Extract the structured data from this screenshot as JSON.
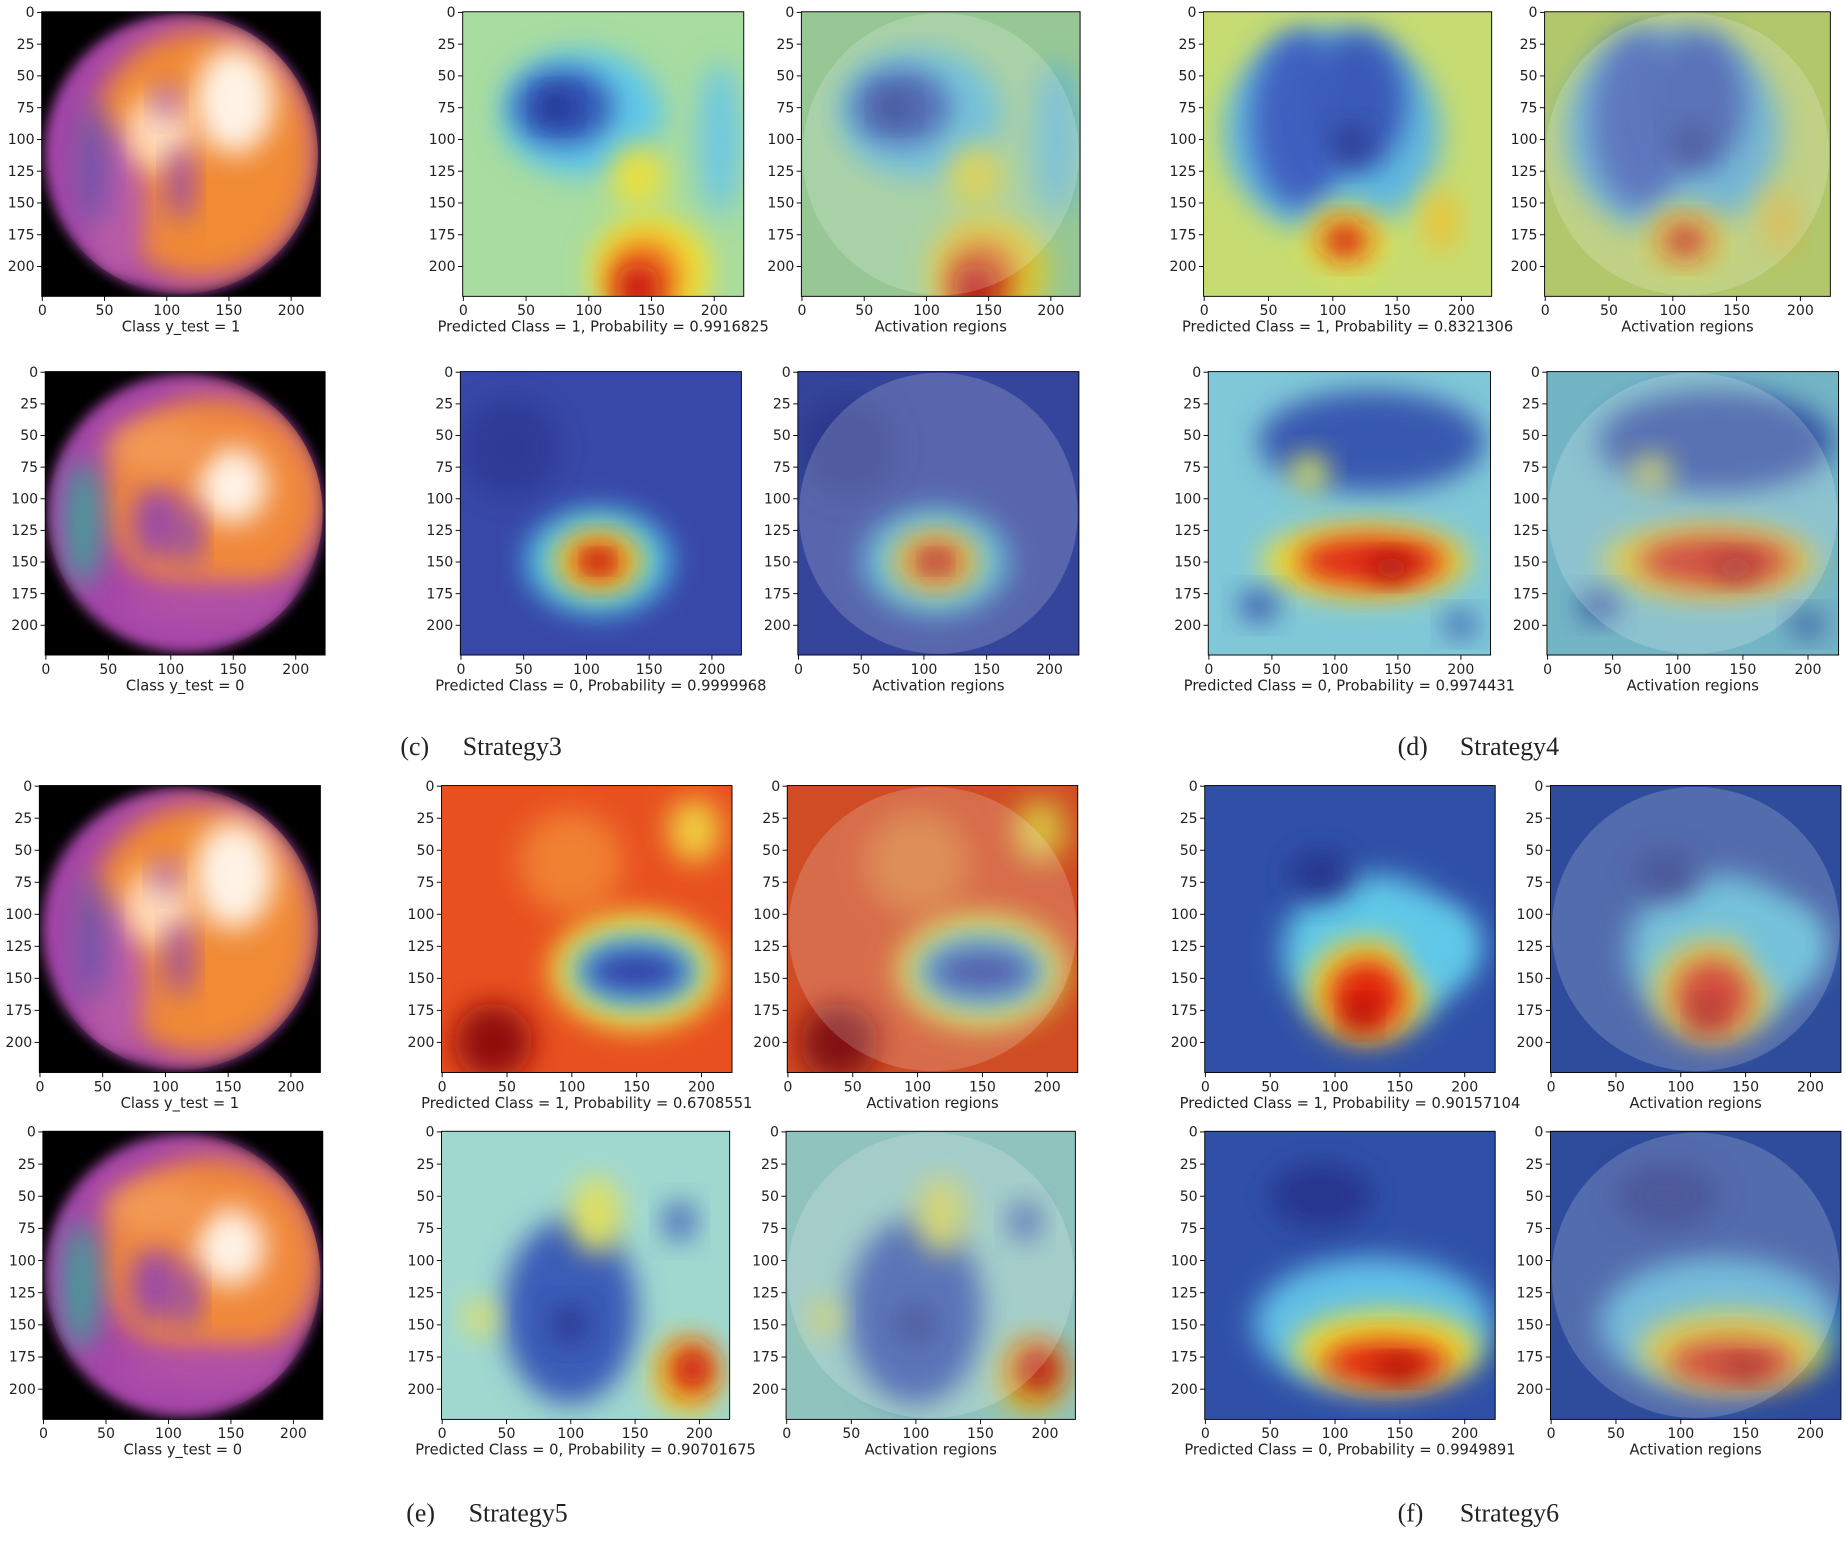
{
  "axes": {
    "yticks": [
      0,
      25,
      50,
      75,
      100,
      125,
      150,
      175,
      200
    ],
    "xticks": [
      0,
      50,
      100,
      150,
      200
    ]
  },
  "panels": [
    {
      "caption": "Class y_test = 1"
    },
    {
      "caption": "Predicted Class = 1, Probability = 0.9916825"
    },
    {
      "caption": "Activation regions"
    },
    {
      "caption": "Predicted Class = 1, Probability = 0.8321306"
    },
    {
      "caption": "Activation regions"
    },
    {
      "caption": "Class y_test = 0"
    },
    {
      "caption": "Predicted Class = 0, Probability = 0.9999968"
    },
    {
      "caption": "Activation regions"
    },
    {
      "caption": "Predicted Class = 0, Probability = 0.9974431"
    },
    {
      "caption": "Activation regions"
    },
    {
      "caption": "Class y_test = 1"
    },
    {
      "caption": "Predicted Class = 1, Probability = 0.6708551"
    },
    {
      "caption": "Activation regions"
    },
    {
      "caption": "Predicted Class = 1, Probability = 0.90157104"
    },
    {
      "caption": "Activation regions"
    },
    {
      "caption": "Class y_test = 0"
    },
    {
      "caption": "Predicted Class = 0, Probability = 0.90701675"
    },
    {
      "caption": "Activation regions"
    },
    {
      "caption": "Predicted Class = 0, Probability = 0.9949891"
    },
    {
      "caption": "Activation regions"
    }
  ],
  "sublabels": [
    {
      "tag": "(c)",
      "name": "Strategy3"
    },
    {
      "tag": "(d)",
      "name": "Strategy4"
    },
    {
      "tag": "(e)",
      "name": "Strategy5"
    },
    {
      "tag": "(f)",
      "name": "Strategy6"
    }
  ]
}
